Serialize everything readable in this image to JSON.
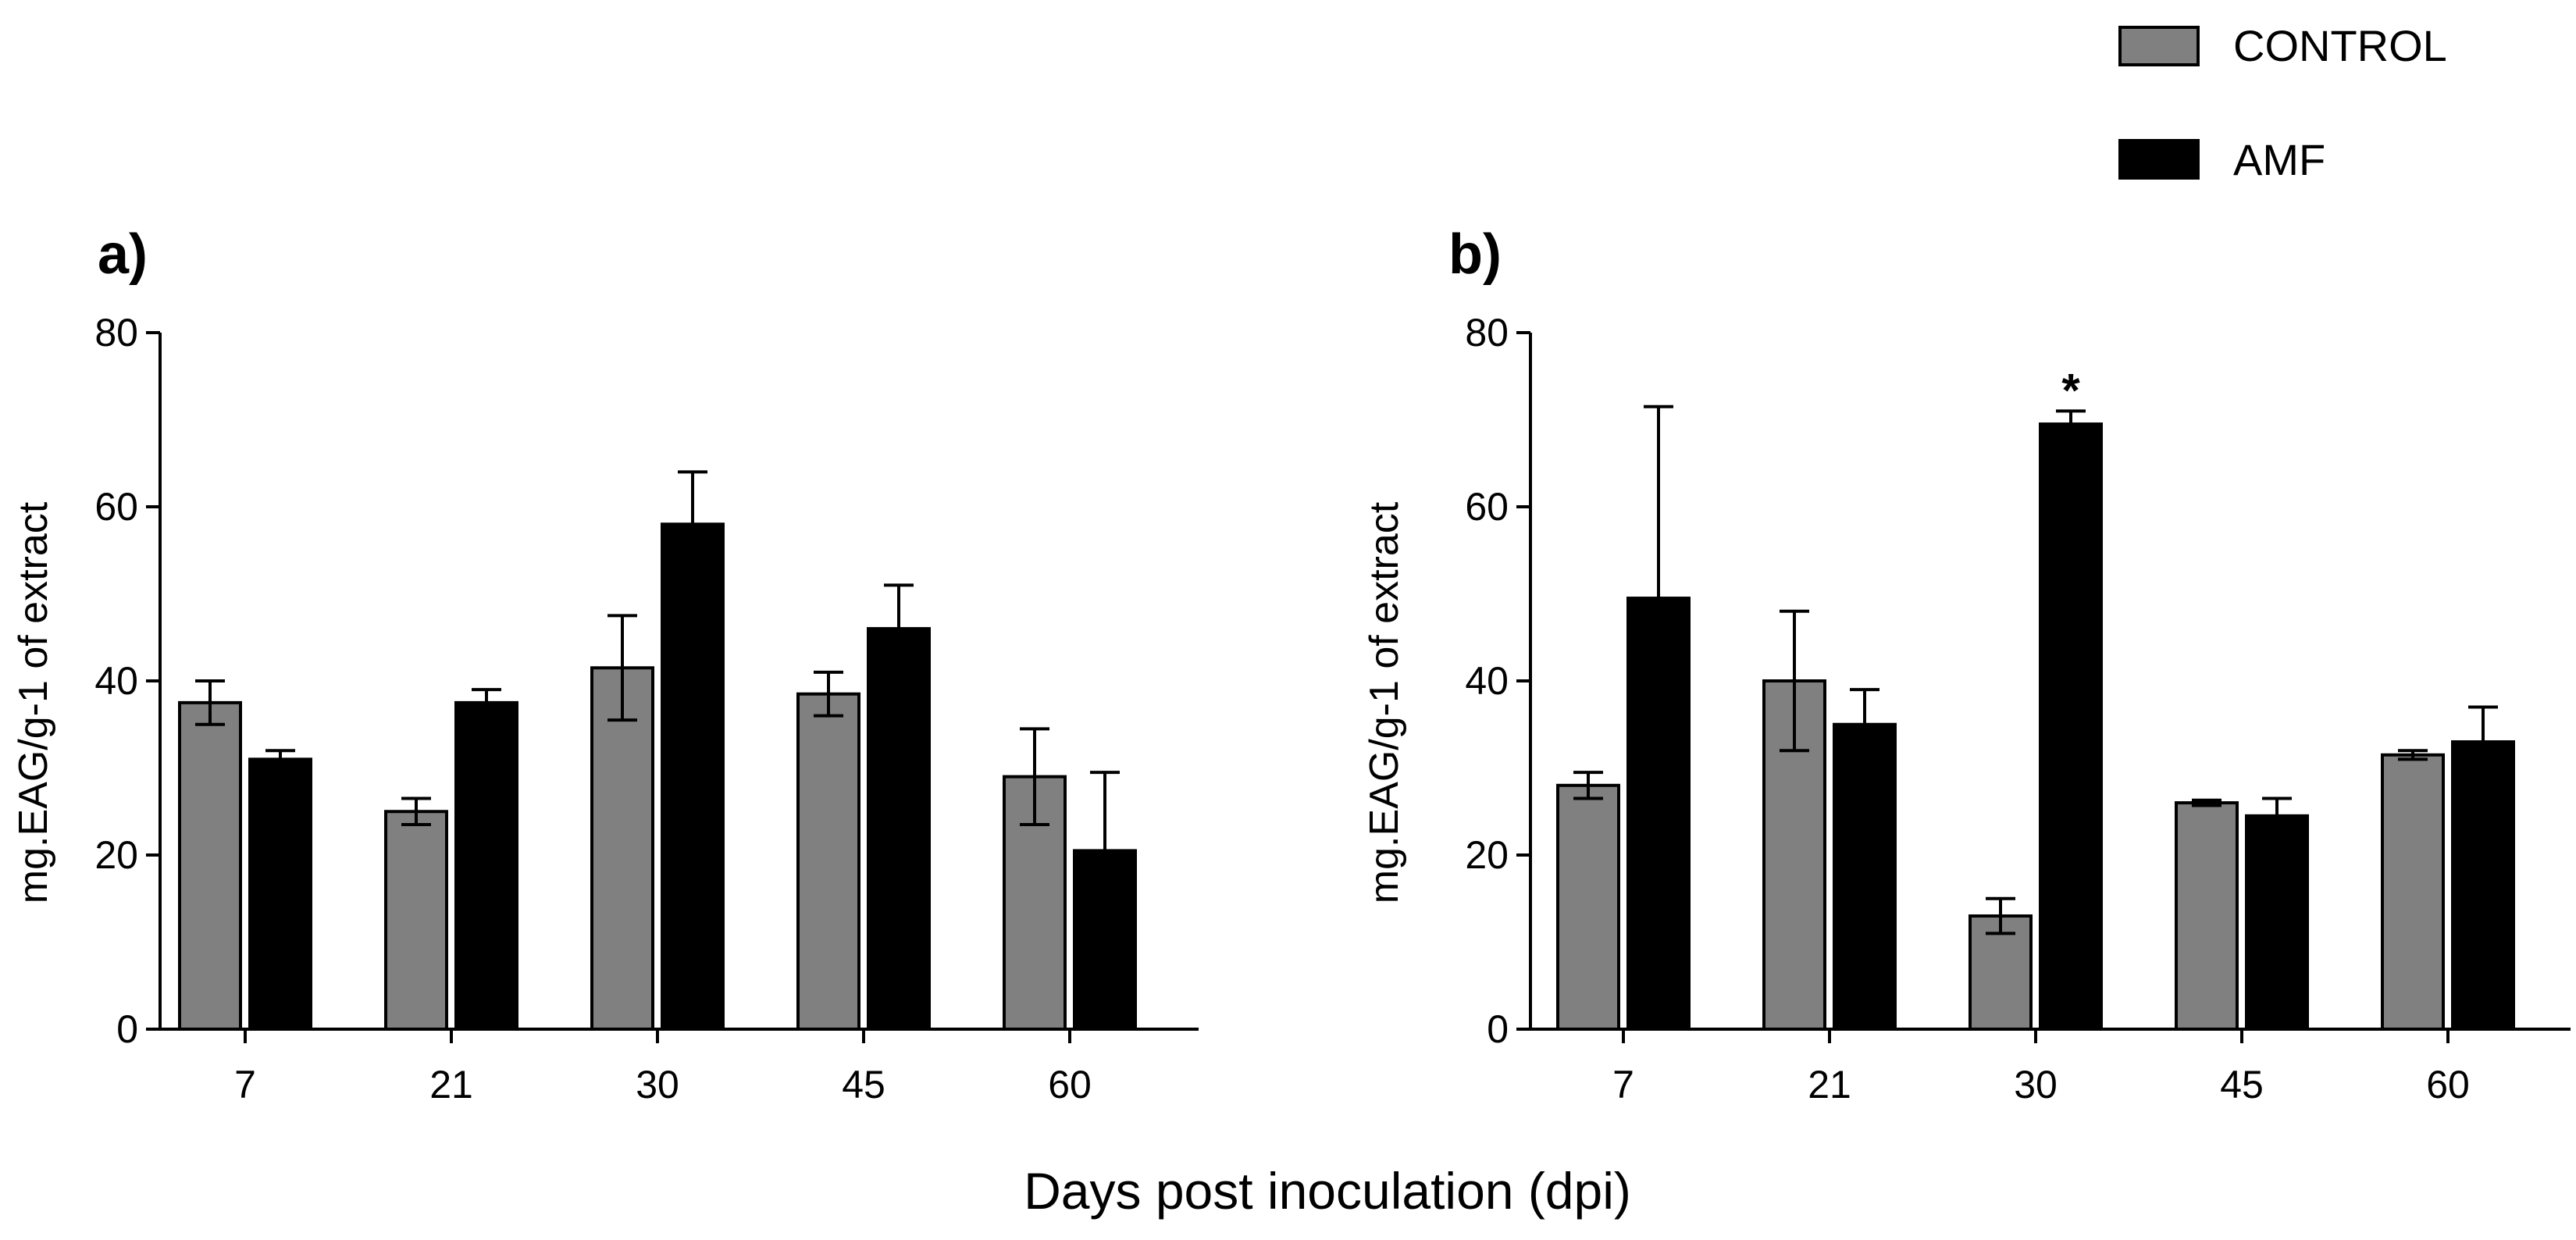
{
  "legend": {
    "items": [
      {
        "label": "CONTROL",
        "color": "#808080"
      },
      {
        "label": "AMF",
        "color": "#000000"
      }
    ]
  },
  "x_title": "Days post inoculation (dpi)",
  "chart_data": [
    {
      "type": "bar",
      "panel": "a)",
      "categories": [
        "7",
        "21",
        "30",
        "45",
        "60"
      ],
      "series": [
        {
          "name": "CONTROL",
          "color": "#808080",
          "values": [
            37.5,
            25,
            41.5,
            38.5,
            29
          ],
          "errors": [
            2.5,
            1.5,
            6,
            2.5,
            5.5
          ]
        },
        {
          "name": "AMF",
          "color": "#000000",
          "values": [
            31,
            37.5,
            58,
            46,
            20.5
          ],
          "errors": [
            1,
            1.5,
            6,
            5,
            9
          ]
        }
      ],
      "ylabel": "mg.EAG/g-1 of extract",
      "yticks": [
        0,
        20,
        40,
        60,
        80
      ],
      "ylim": [
        0,
        80
      ],
      "annotations": []
    },
    {
      "type": "bar",
      "panel": "b)",
      "categories": [
        "7",
        "21",
        "30",
        "45",
        "60"
      ],
      "series": [
        {
          "name": "CONTROL",
          "color": "#808080",
          "values": [
            28,
            40,
            13,
            26,
            31.5
          ],
          "errors": [
            1.5,
            8,
            2,
            0.3,
            0.5
          ]
        },
        {
          "name": "AMF",
          "color": "#000000",
          "values": [
            49.5,
            35,
            69.5,
            24.5,
            33
          ],
          "errors": [
            22,
            4,
            1.5,
            2,
            4
          ]
        }
      ],
      "ylabel": "mg.EAG/g-1 of extract",
      "yticks": [
        0,
        20,
        40,
        60,
        80
      ],
      "ylim": [
        0,
        80
      ],
      "annotations": [
        {
          "category": "30",
          "series": "AMF",
          "text": "*"
        }
      ]
    }
  ]
}
